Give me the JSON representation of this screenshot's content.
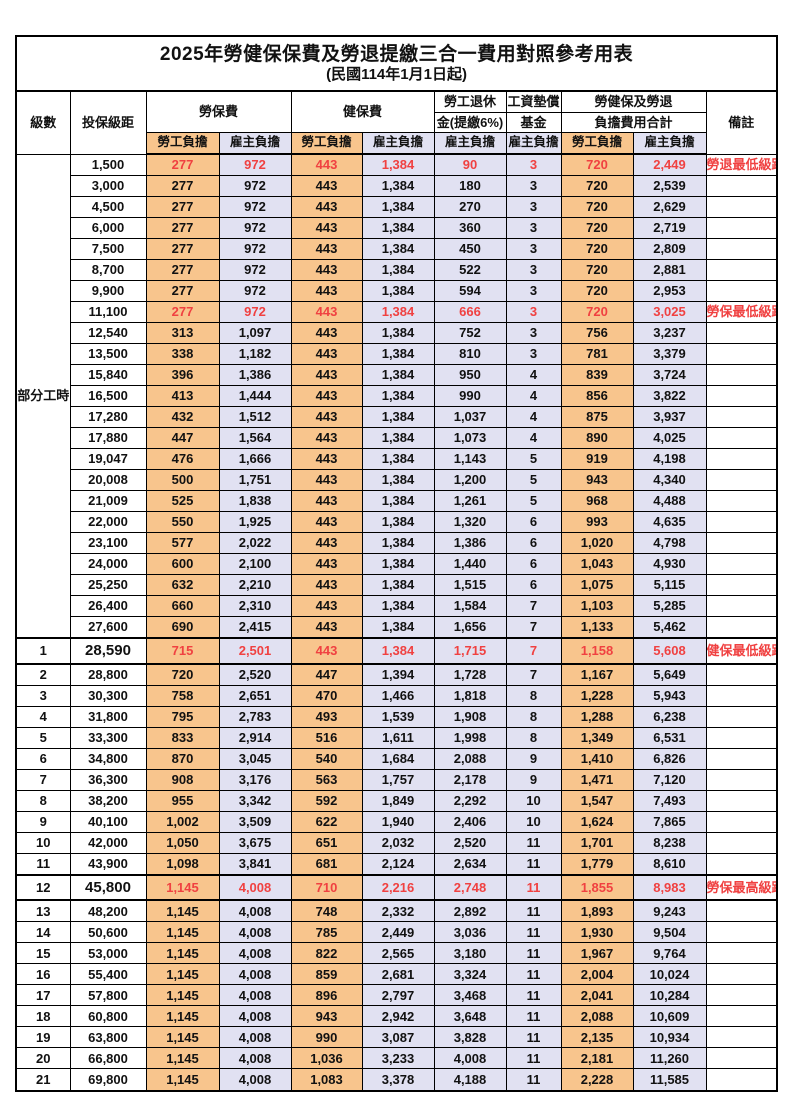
{
  "title": "2025年勞健保保費及勞退提繳三合一費用對照參考用表",
  "subtitle": "(民國114年1月1日起)",
  "header": {
    "level": "級數",
    "bracket": "投保級距",
    "labor_ins": "勞保費",
    "health_ins": "健保費",
    "pension_line1": "勞工退休",
    "pension_line2": "金(提繳6%)",
    "wage_fund_line1": "工資墊償",
    "wage_fund_line2": "基金",
    "total_line1": "勞健保及勞退",
    "total_line2": "負擔費用合計",
    "remark": "備註",
    "employee_share": "勞工負擔",
    "employer_share": "雇主負擔"
  },
  "part_time_label": "部分工時",
  "part_time_rowspan": 23,
  "colors": {
    "orange": "#F8C58D",
    "lavender": "#E1E1F2",
    "red": "#F04141"
  },
  "rows": [
    {
      "lv": "",
      "br": "1,500",
      "v": [
        "277",
        "972",
        "443",
        "1,384",
        "90",
        "3",
        "720",
        "2,449"
      ],
      "rm": "勞退最低級距",
      "red": true,
      "sec": false
    },
    {
      "lv": "",
      "br": "3,000",
      "v": [
        "277",
        "972",
        "443",
        "1,384",
        "180",
        "3",
        "720",
        "2,539"
      ],
      "rm": "",
      "red": false,
      "sec": false
    },
    {
      "lv": "",
      "br": "4,500",
      "v": [
        "277",
        "972",
        "443",
        "1,384",
        "270",
        "3",
        "720",
        "2,629"
      ],
      "rm": "",
      "red": false,
      "sec": false
    },
    {
      "lv": "",
      "br": "6,000",
      "v": [
        "277",
        "972",
        "443",
        "1,384",
        "360",
        "3",
        "720",
        "2,719"
      ],
      "rm": "",
      "red": false,
      "sec": false
    },
    {
      "lv": "",
      "br": "7,500",
      "v": [
        "277",
        "972",
        "443",
        "1,384",
        "450",
        "3",
        "720",
        "2,809"
      ],
      "rm": "",
      "red": false,
      "sec": false
    },
    {
      "lv": "",
      "br": "8,700",
      "v": [
        "277",
        "972",
        "443",
        "1,384",
        "522",
        "3",
        "720",
        "2,881"
      ],
      "rm": "",
      "red": false,
      "sec": false
    },
    {
      "lv": "",
      "br": "9,900",
      "v": [
        "277",
        "972",
        "443",
        "1,384",
        "594",
        "3",
        "720",
        "2,953"
      ],
      "rm": "",
      "red": false,
      "sec": false
    },
    {
      "lv": "",
      "br": "11,100",
      "v": [
        "277",
        "972",
        "443",
        "1,384",
        "666",
        "3",
        "720",
        "3,025"
      ],
      "rm": "勞保最低級距",
      "red": true,
      "sec": false
    },
    {
      "lv": "",
      "br": "12,540",
      "v": [
        "313",
        "1,097",
        "443",
        "1,384",
        "752",
        "3",
        "756",
        "3,237"
      ],
      "rm": "",
      "red": false,
      "sec": false
    },
    {
      "lv": "",
      "br": "13,500",
      "v": [
        "338",
        "1,182",
        "443",
        "1,384",
        "810",
        "3",
        "781",
        "3,379"
      ],
      "rm": "",
      "red": false,
      "sec": false
    },
    {
      "lv": "",
      "br": "15,840",
      "v": [
        "396",
        "1,386",
        "443",
        "1,384",
        "950",
        "4",
        "839",
        "3,724"
      ],
      "rm": "",
      "red": false,
      "sec": false
    },
    {
      "lv": "",
      "br": "16,500",
      "v": [
        "413",
        "1,444",
        "443",
        "1,384",
        "990",
        "4",
        "856",
        "3,822"
      ],
      "rm": "",
      "red": false,
      "sec": false
    },
    {
      "lv": "",
      "br": "17,280",
      "v": [
        "432",
        "1,512",
        "443",
        "1,384",
        "1,037",
        "4",
        "875",
        "3,937"
      ],
      "rm": "",
      "red": false,
      "sec": false
    },
    {
      "lv": "",
      "br": "17,880",
      "v": [
        "447",
        "1,564",
        "443",
        "1,384",
        "1,073",
        "4",
        "890",
        "4,025"
      ],
      "rm": "",
      "red": false,
      "sec": false
    },
    {
      "lv": "",
      "br": "19,047",
      "v": [
        "476",
        "1,666",
        "443",
        "1,384",
        "1,143",
        "5",
        "919",
        "4,198"
      ],
      "rm": "",
      "red": false,
      "sec": false
    },
    {
      "lv": "",
      "br": "20,008",
      "v": [
        "500",
        "1,751",
        "443",
        "1,384",
        "1,200",
        "5",
        "943",
        "4,340"
      ],
      "rm": "",
      "red": false,
      "sec": false
    },
    {
      "lv": "",
      "br": "21,009",
      "v": [
        "525",
        "1,838",
        "443",
        "1,384",
        "1,261",
        "5",
        "968",
        "4,488"
      ],
      "rm": "",
      "red": false,
      "sec": false
    },
    {
      "lv": "",
      "br": "22,000",
      "v": [
        "550",
        "1,925",
        "443",
        "1,384",
        "1,320",
        "6",
        "993",
        "4,635"
      ],
      "rm": "",
      "red": false,
      "sec": false
    },
    {
      "lv": "",
      "br": "23,100",
      "v": [
        "577",
        "2,022",
        "443",
        "1,384",
        "1,386",
        "6",
        "1,020",
        "4,798"
      ],
      "rm": "",
      "red": false,
      "sec": false
    },
    {
      "lv": "",
      "br": "24,000",
      "v": [
        "600",
        "2,100",
        "443",
        "1,384",
        "1,440",
        "6",
        "1,043",
        "4,930"
      ],
      "rm": "",
      "red": false,
      "sec": false
    },
    {
      "lv": "",
      "br": "25,250",
      "v": [
        "632",
        "2,210",
        "443",
        "1,384",
        "1,515",
        "6",
        "1,075",
        "5,115"
      ],
      "rm": "",
      "red": false,
      "sec": false
    },
    {
      "lv": "",
      "br": "26,400",
      "v": [
        "660",
        "2,310",
        "443",
        "1,384",
        "1,584",
        "7",
        "1,103",
        "5,285"
      ],
      "rm": "",
      "red": false,
      "sec": false
    },
    {
      "lv": "",
      "br": "27,600",
      "v": [
        "690",
        "2,415",
        "443",
        "1,384",
        "1,656",
        "7",
        "1,133",
        "5,462"
      ],
      "rm": "",
      "red": false,
      "sec": false
    },
    {
      "lv": "1",
      "br": "28,590",
      "v": [
        "715",
        "2,501",
        "443",
        "1,384",
        "1,715",
        "7",
        "1,158",
        "5,608"
      ],
      "rm": "健保最低級距",
      "red": true,
      "sec": true
    },
    {
      "lv": "2",
      "br": "28,800",
      "v": [
        "720",
        "2,520",
        "447",
        "1,394",
        "1,728",
        "7",
        "1,167",
        "5,649"
      ],
      "rm": "",
      "red": false,
      "sec": false
    },
    {
      "lv": "3",
      "br": "30,300",
      "v": [
        "758",
        "2,651",
        "470",
        "1,466",
        "1,818",
        "8",
        "1,228",
        "5,943"
      ],
      "rm": "",
      "red": false,
      "sec": false
    },
    {
      "lv": "4",
      "br": "31,800",
      "v": [
        "795",
        "2,783",
        "493",
        "1,539",
        "1,908",
        "8",
        "1,288",
        "6,238"
      ],
      "rm": "",
      "red": false,
      "sec": false
    },
    {
      "lv": "5",
      "br": "33,300",
      "v": [
        "833",
        "2,914",
        "516",
        "1,611",
        "1,998",
        "8",
        "1,349",
        "6,531"
      ],
      "rm": "",
      "red": false,
      "sec": false
    },
    {
      "lv": "6",
      "br": "34,800",
      "v": [
        "870",
        "3,045",
        "540",
        "1,684",
        "2,088",
        "9",
        "1,410",
        "6,826"
      ],
      "rm": "",
      "red": false,
      "sec": false
    },
    {
      "lv": "7",
      "br": "36,300",
      "v": [
        "908",
        "3,176",
        "563",
        "1,757",
        "2,178",
        "9",
        "1,471",
        "7,120"
      ],
      "rm": "",
      "red": false,
      "sec": false
    },
    {
      "lv": "8",
      "br": "38,200",
      "v": [
        "955",
        "3,342",
        "592",
        "1,849",
        "2,292",
        "10",
        "1,547",
        "7,493"
      ],
      "rm": "",
      "red": false,
      "sec": false
    },
    {
      "lv": "9",
      "br": "40,100",
      "v": [
        "1,002",
        "3,509",
        "622",
        "1,940",
        "2,406",
        "10",
        "1,624",
        "7,865"
      ],
      "rm": "",
      "red": false,
      "sec": false
    },
    {
      "lv": "10",
      "br": "42,000",
      "v": [
        "1,050",
        "3,675",
        "651",
        "2,032",
        "2,520",
        "11",
        "1,701",
        "8,238"
      ],
      "rm": "",
      "red": false,
      "sec": false
    },
    {
      "lv": "11",
      "br": "43,900",
      "v": [
        "1,098",
        "3,841",
        "681",
        "2,124",
        "2,634",
        "11",
        "1,779",
        "8,610"
      ],
      "rm": "",
      "red": false,
      "sec": false
    },
    {
      "lv": "12",
      "br": "45,800",
      "v": [
        "1,145",
        "4,008",
        "710",
        "2,216",
        "2,748",
        "11",
        "1,855",
        "8,983"
      ],
      "rm": "勞保最高級距",
      "red": true,
      "sec": true
    },
    {
      "lv": "13",
      "br": "48,200",
      "v": [
        "1,145",
        "4,008",
        "748",
        "2,332",
        "2,892",
        "11",
        "1,893",
        "9,243"
      ],
      "rm": "",
      "red": false,
      "sec": false
    },
    {
      "lv": "14",
      "br": "50,600",
      "v": [
        "1,145",
        "4,008",
        "785",
        "2,449",
        "3,036",
        "11",
        "1,930",
        "9,504"
      ],
      "rm": "",
      "red": false,
      "sec": false
    },
    {
      "lv": "15",
      "br": "53,000",
      "v": [
        "1,145",
        "4,008",
        "822",
        "2,565",
        "3,180",
        "11",
        "1,967",
        "9,764"
      ],
      "rm": "",
      "red": false,
      "sec": false
    },
    {
      "lv": "16",
      "br": "55,400",
      "v": [
        "1,145",
        "4,008",
        "859",
        "2,681",
        "3,324",
        "11",
        "2,004",
        "10,024"
      ],
      "rm": "",
      "red": false,
      "sec": false
    },
    {
      "lv": "17",
      "br": "57,800",
      "v": [
        "1,145",
        "4,008",
        "896",
        "2,797",
        "3,468",
        "11",
        "2,041",
        "10,284"
      ],
      "rm": "",
      "red": false,
      "sec": false
    },
    {
      "lv": "18",
      "br": "60,800",
      "v": [
        "1,145",
        "4,008",
        "943",
        "2,942",
        "3,648",
        "11",
        "2,088",
        "10,609"
      ],
      "rm": "",
      "red": false,
      "sec": false
    },
    {
      "lv": "19",
      "br": "63,800",
      "v": [
        "1,145",
        "4,008",
        "990",
        "3,087",
        "3,828",
        "11",
        "2,135",
        "10,934"
      ],
      "rm": "",
      "red": false,
      "sec": false
    },
    {
      "lv": "20",
      "br": "66,800",
      "v": [
        "1,145",
        "4,008",
        "1,036",
        "3,233",
        "4,008",
        "11",
        "2,181",
        "11,260"
      ],
      "rm": "",
      "red": false,
      "sec": false
    },
    {
      "lv": "21",
      "br": "69,800",
      "v": [
        "1,145",
        "4,008",
        "1,083",
        "3,378",
        "4,188",
        "11",
        "2,228",
        "11,585"
      ],
      "rm": "",
      "red": false,
      "sec": false
    }
  ],
  "column_shading": [
    "orange",
    "lavender",
    "orange",
    "lavender",
    "lavender",
    "lavender",
    "orange",
    "lavender"
  ]
}
